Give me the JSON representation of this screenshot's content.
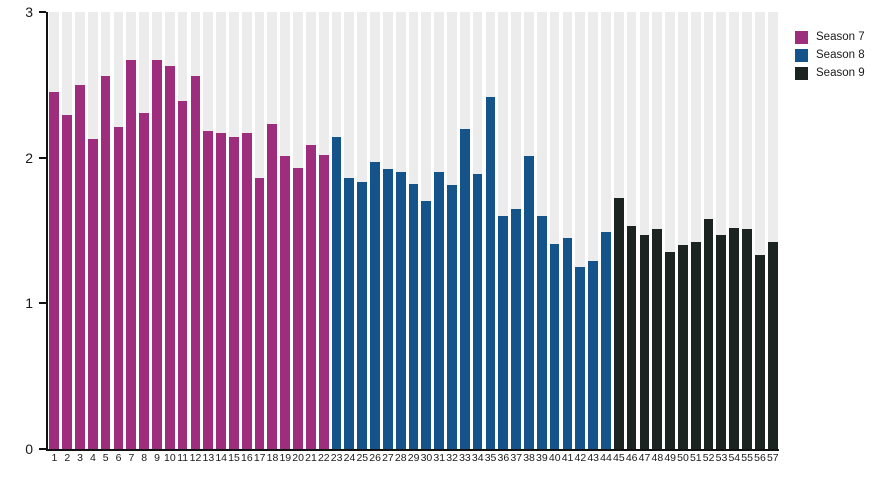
{
  "chart_data": {
    "type": "bar",
    "title": "",
    "xlabel": "",
    "ylabel": "",
    "ylim": [
      0,
      3
    ],
    "y_ticks": [
      0,
      1,
      2,
      3
    ],
    "grid": false,
    "background_band_color": "#ececec",
    "axis_color": "#111111",
    "legend_position": "top-right",
    "categories": [
      "1",
      "2",
      "3",
      "4",
      "5",
      "6",
      "7",
      "8",
      "9",
      "10",
      "11",
      "12",
      "13",
      "14",
      "15",
      "16",
      "17",
      "18",
      "19",
      "20",
      "21",
      "22",
      "23",
      "24",
      "25",
      "26",
      "27",
      "28",
      "29",
      "30",
      "31",
      "32",
      "33",
      "34",
      "35",
      "36",
      "37",
      "38",
      "39",
      "40",
      "41",
      "42",
      "43",
      "44",
      "45",
      "46",
      "47",
      "48",
      "49",
      "50",
      "51",
      "52",
      "53",
      "54",
      "55",
      "56",
      "57"
    ],
    "series": [
      {
        "name": "Season 7",
        "color": "#9e2d7d",
        "start_category": "1",
        "values": [
          2.45,
          2.29,
          2.5,
          2.13,
          2.56,
          2.21,
          2.67,
          2.31,
          2.67,
          2.63,
          2.39,
          2.56,
          2.18,
          2.17,
          2.14,
          2.17,
          1.86,
          2.23,
          2.01,
          1.93,
          2.09,
          2.02
        ]
      },
      {
        "name": "Season 8",
        "color": "#15548b",
        "start_category": "23",
        "values": [
          2.14,
          1.86,
          1.83,
          1.97,
          1.92,
          1.9,
          1.82,
          1.7,
          1.9,
          1.81,
          2.2,
          1.89,
          2.42,
          1.6,
          1.65,
          2.01,
          1.6,
          1.41,
          1.45,
          1.25,
          1.29,
          1.49
        ]
      },
      {
        "name": "Season 9",
        "color": "#1c2422",
        "start_category": "45",
        "values": [
          1.72,
          1.53,
          1.47,
          1.51,
          1.35,
          1.4,
          1.42,
          1.58,
          1.47,
          1.52,
          1.51,
          1.33,
          1.42
        ]
      }
    ]
  },
  "legend": {
    "items": [
      {
        "label": "Season 7",
        "color": "#9e2d7d"
      },
      {
        "label": "Season 8",
        "color": "#15548b"
      },
      {
        "label": "Season 9",
        "color": "#1c2422"
      }
    ]
  }
}
